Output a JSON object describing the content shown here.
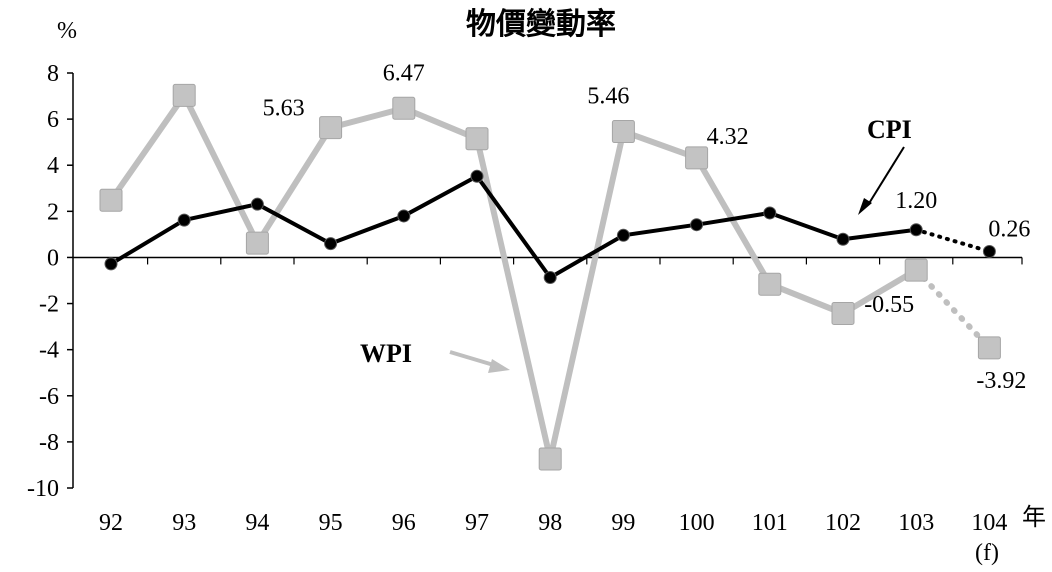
{
  "chart_data": {
    "type": "line",
    "title": "物價變動率",
    "ylabel": "%",
    "xlabel": "年",
    "ylim": [
      -10,
      8
    ],
    "yticks": [
      8,
      6,
      4,
      2,
      0,
      -2,
      -4,
      -6,
      -8,
      -10
    ],
    "categories": [
      "92",
      "93",
      "94",
      "95",
      "96",
      "97",
      "98",
      "99",
      "100",
      "101",
      "102",
      "103",
      "104"
    ],
    "forecast_note": "(f)",
    "series": [
      {
        "name": "CPI",
        "color": "#000000",
        "values": [
          -0.28,
          1.62,
          2.31,
          0.6,
          1.8,
          3.52,
          -0.87,
          0.96,
          1.42,
          1.93,
          0.79,
          1.2,
          0.26
        ],
        "forecast_from_index": 11
      },
      {
        "name": "WPI",
        "color": "#bfbfbf",
        "values": [
          2.48,
          7.03,
          0.62,
          5.63,
          6.47,
          5.15,
          -8.74,
          5.46,
          4.32,
          -1.16,
          -2.43,
          -0.55,
          -3.92
        ],
        "forecast_from_index": 11
      }
    ],
    "data_labels": [
      {
        "series": "WPI",
        "index": 3,
        "text": "5.63"
      },
      {
        "series": "WPI",
        "index": 4,
        "text": "6.47"
      },
      {
        "series": "WPI",
        "index": 7,
        "text": "5.46"
      },
      {
        "series": "WPI",
        "index": 8,
        "text": "4.32"
      },
      {
        "series": "CPI",
        "index": 11,
        "text": "1.20"
      },
      {
        "series": "CPI",
        "index": 12,
        "text": "0.26"
      },
      {
        "series": "WPI",
        "index": 11,
        "text": "-0.55"
      },
      {
        "series": "WPI",
        "index": 12,
        "text": "-3.92"
      }
    ]
  }
}
